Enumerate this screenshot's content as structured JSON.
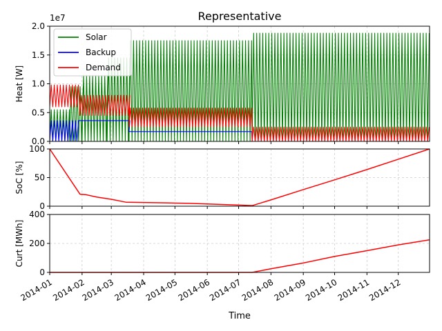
{
  "chart_data": [
    {
      "type": "line",
      "title": "Representative",
      "ylabel": "Heat [W]",
      "offset_label": "1e7",
      "xlim": [
        "2014-01-01",
        "2014-12-31"
      ],
      "ylim": [
        0,
        2.0
      ],
      "y_ticks": [
        "0.0",
        "0.5",
        "1.0",
        "1.5",
        "2.0"
      ],
      "grid": true,
      "legend_position": "top-left",
      "series": [
        {
          "name": "Solar",
          "color": "#008000",
          "segments": [
            {
              "from": "2014-01-01",
              "to": "2014-01-20",
              "low": 0.0,
              "high": 0.55
            },
            {
              "from": "2014-01-20",
              "to": "2014-02-01",
              "low": 0.0,
              "high": 0.95
            },
            {
              "from": "2014-02-01",
              "to": "2014-02-25",
              "low": 0.0,
              "high": 1.15
            },
            {
              "from": "2014-02-25",
              "to": "2014-03-18",
              "low": 0.0,
              "high": 1.45
            },
            {
              "from": "2014-03-18",
              "to": "2014-07-14",
              "low": 0.0,
              "high": 1.75
            },
            {
              "from": "2014-07-14",
              "to": "2014-12-31",
              "low": 0.0,
              "high": 1.88
            }
          ]
        },
        {
          "name": "Backup",
          "color": "#0000ff",
          "segments": [
            {
              "from": "2014-01-01",
              "to": "2014-01-30",
              "low": 0.0,
              "high": 0.36
            },
            {
              "from": "2014-01-30",
              "to": "2014-03-18",
              "low": 0.36,
              "high": 0.36
            },
            {
              "from": "2014-03-18",
              "to": "2014-07-14",
              "low": 0.17,
              "high": 0.17
            },
            {
              "from": "2014-07-14",
              "to": "2014-12-31",
              "low": 0.0,
              "high": 0.0
            }
          ]
        },
        {
          "name": "Demand",
          "color": "#ff0000",
          "segments": [
            {
              "from": "2014-01-01",
              "to": "2014-01-30",
              "low": 0.6,
              "high": 0.98
            },
            {
              "from": "2014-01-30",
              "to": "2014-03-18",
              "low": 0.45,
              "high": 0.8
            },
            {
              "from": "2014-03-18",
              "to": "2014-07-14",
              "low": 0.25,
              "high": 0.58
            },
            {
              "from": "2014-07-14",
              "to": "2014-12-31",
              "low": 0.0,
              "high": 0.25
            }
          ]
        }
      ]
    },
    {
      "type": "line",
      "ylabel": "SoC [%]",
      "ylim": [
        0,
        100
      ],
      "y_ticks": [
        "0",
        "50",
        "100"
      ],
      "grid": true,
      "series": [
        {
          "color": "#ff0000",
          "x": [
            "2014-01-01",
            "2014-01-30",
            "2014-02-05",
            "2014-02-15",
            "2014-03-01",
            "2014-03-15",
            "2014-04-15",
            "2014-05-15",
            "2014-06-15",
            "2014-07-14",
            "2014-08-01",
            "2014-09-01",
            "2014-10-01",
            "2014-11-01",
            "2014-12-01",
            "2014-12-31"
          ],
          "y": [
            100,
            21,
            20,
            16,
            12,
            7,
            6,
            5,
            3,
            1,
            11,
            29,
            46,
            64,
            82,
            100
          ]
        }
      ]
    },
    {
      "type": "line",
      "ylabel": "Curt [MWh]",
      "xlabel": "Time",
      "ylim": [
        0,
        400
      ],
      "y_ticks": [
        "0",
        "200",
        "400"
      ],
      "x_ticks": [
        "2014-01",
        "2014-02",
        "2014-03",
        "2014-04",
        "2014-05",
        "2014-06",
        "2014-07",
        "2014-08",
        "2014-09",
        "2014-10",
        "2014-11",
        "2014-12"
      ],
      "grid": true,
      "series": [
        {
          "color": "#ff0000",
          "x": [
            "2014-01-01",
            "2014-07-14",
            "2014-08-01",
            "2014-09-01",
            "2014-10-01",
            "2014-11-01",
            "2014-12-01",
            "2014-12-31"
          ],
          "y": [
            0,
            0,
            25,
            65,
            110,
            150,
            190,
            225
          ]
        }
      ]
    }
  ]
}
